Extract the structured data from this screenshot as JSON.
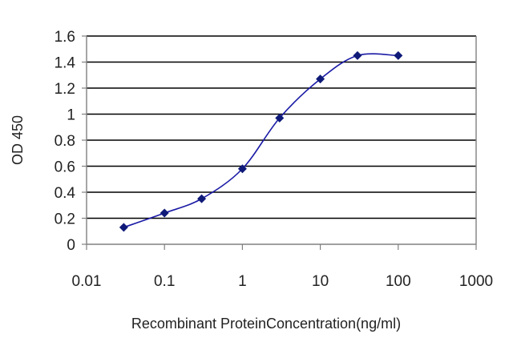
{
  "chart_data": {
    "type": "line",
    "title": "",
    "xlabel": "Recombinant ProteinConcentration(ng/ml)",
    "ylabel": "OD 450",
    "xscale": "log",
    "xlim": [
      0.01,
      1000
    ],
    "ylim": [
      0,
      1.6
    ],
    "x_ticks": [
      0.01,
      0.1,
      1,
      10,
      100,
      1000
    ],
    "x_tick_labels": [
      "0.01",
      "0.1",
      "1",
      "10",
      "100",
      "1000"
    ],
    "y_ticks": [
      0,
      0.2,
      0.4,
      0.6,
      0.8,
      1,
      1.2,
      1.4,
      1.6
    ],
    "y_tick_labels": [
      "0",
      "0.2",
      "0.4",
      "0.6",
      "0.8",
      "1",
      "1.2",
      "1.4",
      "1.6"
    ],
    "grid": "horizontal",
    "legend": "none",
    "marker": "diamond",
    "series": [
      {
        "x": [
          0.03,
          0.1,
          0.3,
          1,
          3,
          10,
          30,
          100
        ],
        "y": [
          0.13,
          0.24,
          0.35,
          0.58,
          0.97,
          1.27,
          1.45,
          1.45
        ]
      }
    ],
    "colors": {
      "series": "#1a1aa6",
      "marker": "#0f1a78",
      "grid": "#000000",
      "frame": "#808080"
    }
  }
}
